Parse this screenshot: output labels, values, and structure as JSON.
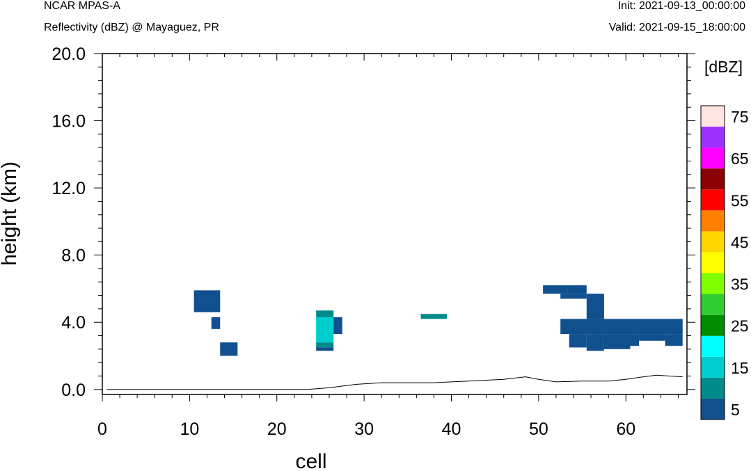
{
  "header": {
    "left_title": "NCAR MPAS-A",
    "left_subtitle": "Reflectivity (dBZ) @ Mayaguez, PR",
    "init": "Init: 2021-09-13_00:00:00",
    "valid": "Valid: 2021-09-15_18:00:00"
  },
  "chart_data": {
    "type": "heatmap",
    "title": "Reflectivity (dBZ) @ Mayaguez, PR",
    "xlabel": "cell",
    "ylabel": "height (km)",
    "xlim": [
      0,
      67
    ],
    "ylim": [
      -0.3,
      20.0
    ],
    "x_ticks": [
      0,
      10,
      20,
      30,
      40,
      50,
      60
    ],
    "x_tick_labels": [
      "0",
      "10",
      "20",
      "30",
      "40",
      "50",
      "60"
    ],
    "y_ticks": [
      0,
      4,
      8,
      12,
      16,
      20
    ],
    "y_tick_labels": [
      "0.0",
      "4.0",
      "8.0",
      "12.0",
      "16.0",
      "20.0"
    ],
    "colorbar": {
      "units": "[dBZ]",
      "levels": [
        5,
        10,
        15,
        20,
        25,
        30,
        35,
        40,
        45,
        50,
        55,
        60,
        65,
        70,
        75
      ],
      "tick_labels": [
        "5",
        "15",
        "25",
        "35",
        "45",
        "55",
        "65",
        "75"
      ],
      "colors": [
        "#10508f",
        "#008b8b",
        "#00cdcd",
        "#00ffff",
        "#008b00",
        "#32cd32",
        "#7fff00",
        "#ffff00",
        "#ffd700",
        "#ff7f00",
        "#ff0000",
        "#8b0000",
        "#ff00ff",
        "#9b30ff",
        "#ffe4e1"
      ]
    },
    "reflectivity_cells": [
      {
        "x0": 10.5,
        "x1": 13.5,
        "y0": 4.6,
        "y1": 5.9,
        "dbz": 5
      },
      {
        "x0": 12.5,
        "x1": 13.5,
        "y0": 3.6,
        "y1": 4.3,
        "dbz": 5
      },
      {
        "x0": 13.5,
        "x1": 15.5,
        "y0": 2.0,
        "y1": 2.8,
        "dbz": 5
      },
      {
        "x0": 24.5,
        "x1": 26.5,
        "y0": 2.3,
        "y1": 2.5,
        "dbz": 5
      },
      {
        "x0": 24.5,
        "x1": 26.5,
        "y0": 2.5,
        "y1": 2.8,
        "dbz": 10
      },
      {
        "x0": 24.5,
        "x1": 26.5,
        "y0": 2.8,
        "y1": 4.3,
        "dbz": 15
      },
      {
        "x0": 24.5,
        "x1": 26.5,
        "y0": 4.3,
        "y1": 4.7,
        "dbz": 10
      },
      {
        "x0": 26.5,
        "x1": 27.5,
        "y0": 3.3,
        "y1": 4.3,
        "dbz": 5
      },
      {
        "x0": 36.5,
        "x1": 39.5,
        "y0": 4.2,
        "y1": 4.5,
        "dbz": 10
      },
      {
        "x0": 50.5,
        "x1": 55.5,
        "y0": 5.7,
        "y1": 6.2,
        "dbz": 5
      },
      {
        "x0": 52.5,
        "x1": 55.5,
        "y0": 5.4,
        "y1": 5.7,
        "dbz": 5
      },
      {
        "x0": 55.5,
        "x1": 57.5,
        "y0": 4.2,
        "y1": 5.7,
        "dbz": 5
      },
      {
        "x0": 52.5,
        "x1": 66.5,
        "y0": 3.3,
        "y1": 4.2,
        "dbz": 5
      },
      {
        "x0": 53.5,
        "x1": 55.5,
        "y0": 2.5,
        "y1": 3.3,
        "dbz": 5
      },
      {
        "x0": 55.5,
        "x1": 57.5,
        "y0": 2.3,
        "y1": 3.3,
        "dbz": 5
      },
      {
        "x0": 57.5,
        "x1": 60.5,
        "y0": 2.4,
        "y1": 3.3,
        "dbz": 5
      },
      {
        "x0": 60.5,
        "x1": 61.5,
        "y0": 2.6,
        "y1": 3.3,
        "dbz": 5
      },
      {
        "x0": 61.5,
        "x1": 64.5,
        "y0": 2.9,
        "y1": 3.3,
        "dbz": 5
      },
      {
        "x0": 64.5,
        "x1": 66.5,
        "y0": 2.6,
        "y1": 3.3,
        "dbz": 5
      }
    ],
    "terrain": {
      "x": [
        0.5,
        23.5,
        26,
        29,
        32,
        35,
        38,
        42,
        46,
        48.5,
        50,
        52,
        55,
        58,
        60,
        62,
        63.5,
        65,
        66.5
      ],
      "y": [
        0.0,
        0.0,
        0.1,
        0.3,
        0.4,
        0.4,
        0.4,
        0.5,
        0.6,
        0.75,
        0.6,
        0.45,
        0.5,
        0.5,
        0.6,
        0.75,
        0.85,
        0.8,
        0.75
      ]
    },
    "grid": false
  }
}
